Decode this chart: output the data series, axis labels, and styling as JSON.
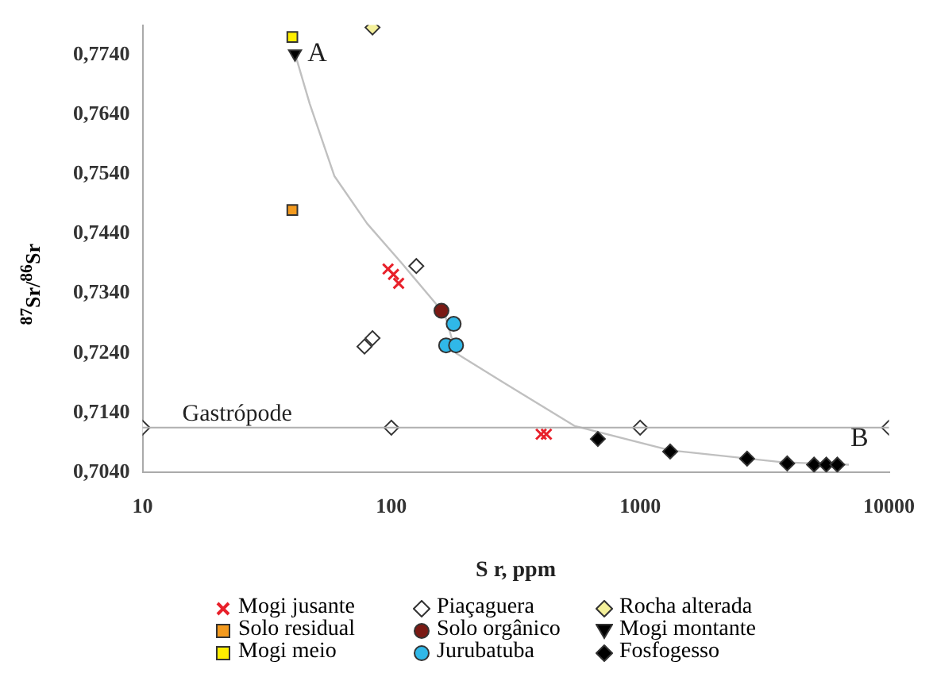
{
  "chart_data": {
    "type": "scatter",
    "xlabel": "S r, ppm",
    "ylabel": "$^{87}$Sr/$^{86}$Sr",
    "log": "x",
    "grid": false,
    "legend": "bottom",
    "xlim": [
      10,
      10000
    ],
    "xticks": [
      10,
      100,
      1000,
      10000
    ],
    "ylim": [
      0.704,
      0.779
    ],
    "yticks": [
      {
        "value": 0.704,
        "label": "0,7040"
      },
      {
        "value": 0.714,
        "label": "0,7140"
      },
      {
        "value": 0.724,
        "label": "0,7240"
      },
      {
        "value": 0.734,
        "label": "0,7340"
      },
      {
        "value": 0.744,
        "label": "0,7440"
      },
      {
        "value": 0.754,
        "label": "0,7540"
      },
      {
        "value": 0.764,
        "label": "0,7640"
      },
      {
        "value": 0.774,
        "label": "0,7740"
      }
    ],
    "ref_lines": [
      {
        "axis": "y",
        "value": 0.7115,
        "label": "Gastrópode",
        "color": "#b0b0b0"
      }
    ],
    "annotations": [
      {
        "text": "A",
        "x": 41,
        "y": 0.7742
      },
      {
        "text": "B",
        "x": 6200,
        "y": 0.7053
      }
    ],
    "series": [
      {
        "type": "line",
        "color": "#c0c0c0",
        "marker": "none",
        "x": [
          41,
          47,
          59,
          80,
          110,
          164,
          182,
          279,
          544,
          1320,
          3720,
          6900
        ],
        "values": [
          0.7742,
          0.7658,
          0.7537,
          0.7457,
          0.7391,
          0.7305,
          0.724,
          0.7192,
          0.7118,
          0.7077,
          0.7057,
          0.7053
        ]
      },
      {
        "name": "Mogi jusante",
        "color": "#e8202a",
        "marker": "cross",
        "x": [
          97,
          102,
          107,
          400,
          420
        ],
        "values": [
          0.7381,
          0.7372,
          0.7357,
          0.7104,
          0.7104
        ]
      },
      {
        "name": "Solo residual",
        "color": "#f39a1e",
        "marker": "square",
        "x": [
          40
        ],
        "values": [
          0.748
        ]
      },
      {
        "name": "Mogi meio",
        "color": "#ffee00",
        "marker": "square",
        "x": [
          40
        ],
        "values": [
          0.777
        ]
      },
      {
        "name": "Piaçaguera",
        "color": "#ffffff",
        "marker": "diamond",
        "x": [
          126,
          78,
          84,
          10,
          100,
          1000,
          10000
        ],
        "values": [
          0.7386,
          0.7251,
          0.7265,
          0.7115,
          0.7115,
          0.7115,
          0.7115
        ]
      },
      {
        "name": "Solo orgânico",
        "color": "#7a1a14",
        "marker": "circle",
        "x": [
          159
        ],
        "values": [
          0.7311
        ]
      },
      {
        "name": "Jurubatuba",
        "color": "#30b8e8",
        "marker": "circle",
        "x": [
          178,
          166,
          182
        ],
        "values": [
          0.7289,
          0.7253,
          0.7253
        ]
      },
      {
        "name": "Rocha alterada",
        "color": "#f4f09a",
        "marker": "diamond",
        "x": [
          84
        ],
        "values": [
          0.7786
        ]
      },
      {
        "name": "Mogi montante",
        "color": "#000000",
        "marker": "triangle",
        "x": [
          41
        ],
        "values": [
          0.7742
        ]
      },
      {
        "name": "Fosfogesso",
        "color": "#000000",
        "marker": "diamond",
        "x": [
          676,
          1320,
          2690,
          3900,
          5000,
          5600,
          6200
        ],
        "values": [
          0.7096,
          0.7075,
          0.7063,
          0.7055,
          0.7053,
          0.7053,
          0.7053
        ]
      }
    ]
  }
}
